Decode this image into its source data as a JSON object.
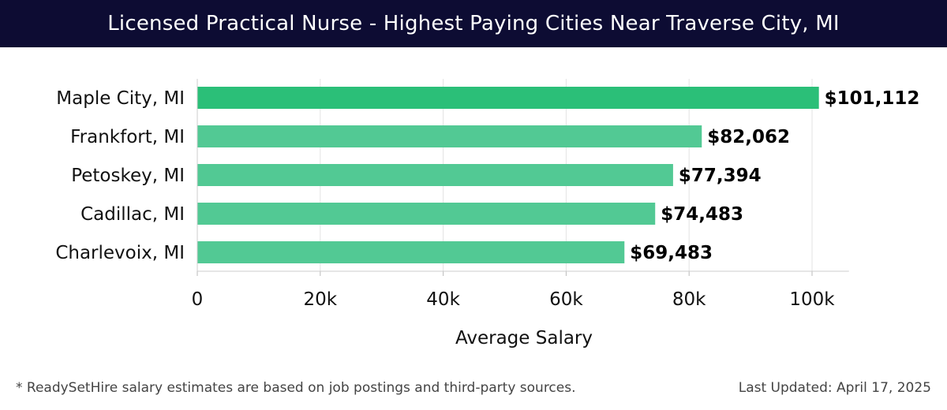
{
  "header": {
    "title": "Licensed Practical Nurse - Highest Paying Cities Near Traverse City, MI"
  },
  "chart_data": {
    "type": "bar",
    "orientation": "horizontal",
    "categories": [
      "Maple City, MI",
      "Frankfort, MI",
      "Petoskey, MI",
      "Cadillac, MI",
      "Charlevoix, MI"
    ],
    "values": [
      101112,
      82062,
      77394,
      74483,
      69483
    ],
    "value_labels": [
      "$101,112",
      "$82,062",
      "$77,394",
      "$74,483",
      "$69,483"
    ],
    "xlabel": "Average Salary",
    "ylabel": "",
    "xlim": [
      0,
      106000
    ],
    "xticks": [
      0,
      20000,
      40000,
      60000,
      80000,
      100000
    ],
    "xtick_labels": [
      "0",
      "20k",
      "40k",
      "60k",
      "80k",
      "100k"
    ],
    "grid": true,
    "colors": {
      "top_bar": "#2bbf78",
      "bar": "#52c994",
      "grid": "#e3e3e3",
      "axis": "#cccccc"
    }
  },
  "footer": {
    "note": "* ReadySetHire salary estimates are based on job postings and third-party sources.",
    "last_updated": "Last Updated: April 17, 2025"
  }
}
